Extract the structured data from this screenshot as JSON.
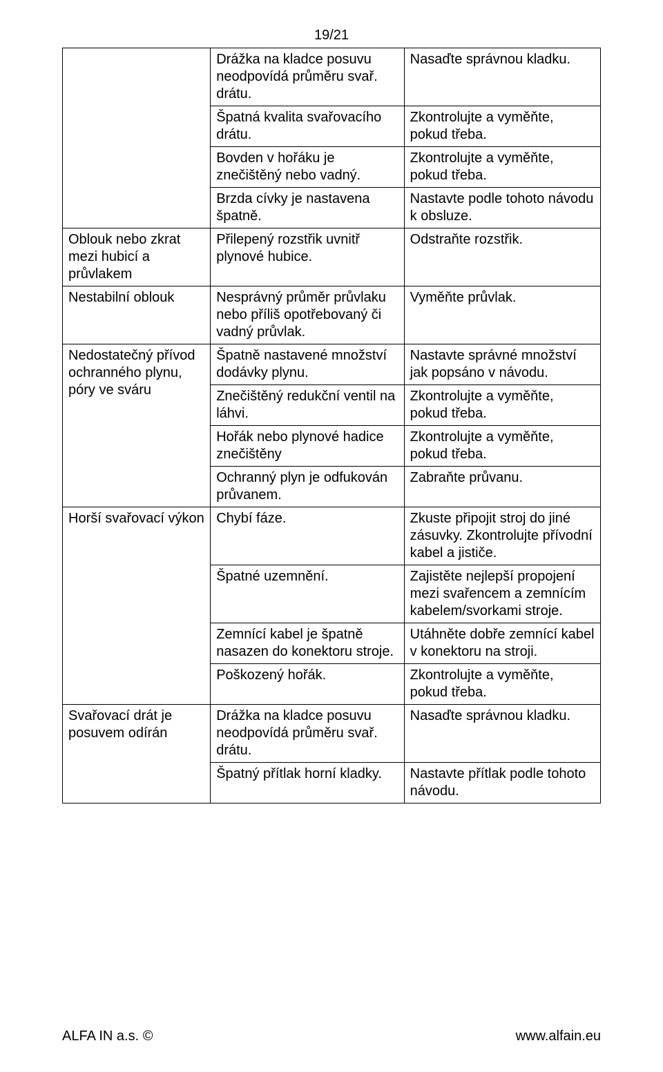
{
  "page_number": "19/21",
  "footer": {
    "left": "ALFA IN a.s. ©",
    "right": "www.alfain.eu"
  },
  "sections": [
    {
      "col1": "",
      "rows": [
        {
          "c2": "Drážka na kladce posuvu neodpovídá průměru svař. drátu.",
          "c3": "Nasaďte správnou kladku."
        },
        {
          "c2": "Špatná kvalita svařovacího drátu.",
          "c3": "Zkontrolujte a vyměňte, pokud třeba."
        },
        {
          "c2": "Bovden v hořáku je znečištěný nebo vadný.",
          "c3": "Zkontrolujte a vyměňte, pokud třeba."
        },
        {
          "c2": "Brzda cívky je nastavena špatně.",
          "c3": "Nastavte podle tohoto návodu k obsluze."
        }
      ]
    },
    {
      "col1": "Oblouk nebo zkrat mezi hubicí a průvlakem",
      "rows": [
        {
          "c2": "Přilepený rozstřik uvnitř plynové hubice.",
          "c3": "Odstraňte rozstřik."
        }
      ]
    },
    {
      "col1": "Nestabilní oblouk",
      "rows": [
        {
          "c2": "Nesprávný průměr průvlaku nebo příliš opotřebovaný či vadný průvlak.",
          "c3": "Vyměňte průvlak."
        }
      ]
    },
    {
      "col1": "Nedostatečný přívod ochranného plynu, póry ve sváru",
      "rows": [
        {
          "c2": "Špatně nastavené množství dodávky plynu.",
          "c3": "Nastavte správné množství jak popsáno v návodu."
        },
        {
          "c2": "Znečištěný redukční ventil na láhvi.",
          "c3": "Zkontrolujte a vyměňte, pokud třeba."
        },
        {
          "c2": "Hořák nebo plynové hadice znečištěny",
          "c3": "Zkontrolujte a vyměňte, pokud třeba."
        },
        {
          "c2": "Ochranný plyn je odfukován průvanem.",
          "c3": "Zabraňte průvanu."
        }
      ]
    },
    {
      "col1": "Horší svařovací výkon",
      "rows": [
        {
          "c2": "Chybí fáze.",
          "c3": "Zkuste připojit stroj do jiné zásuvky. Zkontrolujte přívodní kabel a jističe."
        },
        {
          "c2": "Špatné uzemnění.",
          "c3": "Zajistěte nejlepší propojení mezi svařencem a zemnícím kabelem/svorkami stroje."
        },
        {
          "c2": "Zemnící kabel je špatně nasazen do konektoru stroje.",
          "c3": "Utáhněte dobře zemnící kabel v konektoru na stroji."
        },
        {
          "c2": "Poškozený hořák.",
          "c3": "Zkontrolujte a vyměňte, pokud třeba."
        }
      ]
    },
    {
      "col1": "Svařovací drát je posuvem odírán",
      "rows": [
        {
          "c2": "Drážka na kladce posuvu neodpovídá průměru svař. drátu.",
          "c3": "Nasaďte správnou kladku."
        },
        {
          "c2": "Špatný přítlak horní kladky.",
          "c3": "Nastavte přítlak podle tohoto návodu."
        }
      ]
    }
  ]
}
